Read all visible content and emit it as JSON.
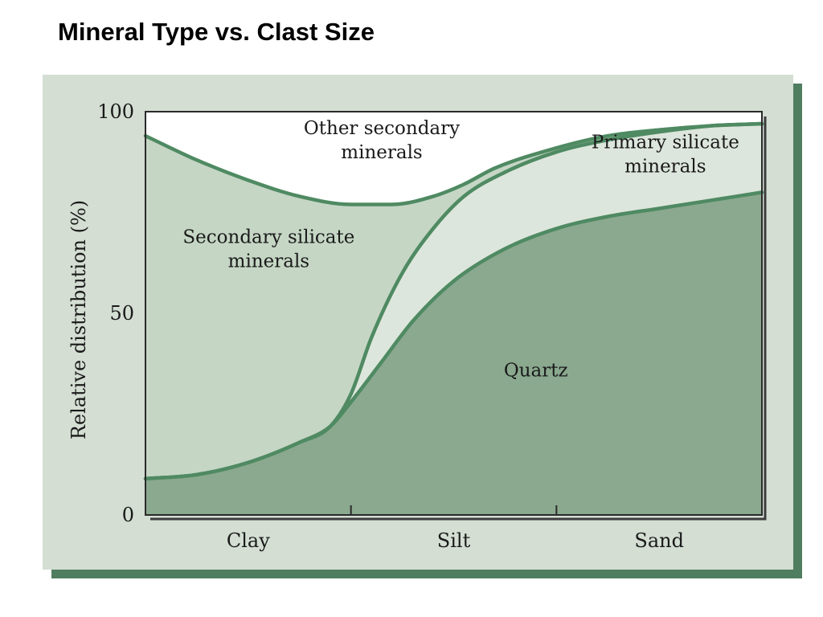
{
  "title": "Mineral Type vs. Clast Size",
  "colors": {
    "panel_bg": "#d4ded3",
    "panel_shadow": "#4f7d5f",
    "quartz_fill": "#8aa98f",
    "primary_fill": "#dde6dc",
    "secondary_fill": "#c5d6c5",
    "other_fill": "#ffffff",
    "curve": "#4f8a62",
    "axis": "#2a2a2a"
  },
  "chart_data": {
    "type": "area",
    "stacked": true,
    "ylabel": "Relative distribution (%)",
    "xlabel": "",
    "ylim": [
      0,
      100
    ],
    "xlim": [
      0,
      3
    ],
    "y_ticks": [
      {
        "value": 0,
        "label": "0"
      },
      {
        "value": 50,
        "label": "50"
      },
      {
        "value": 100,
        "label": "100"
      }
    ],
    "x_tick_marks": [
      1,
      2
    ],
    "categories": [
      {
        "label": "Clay",
        "x": 0.5
      },
      {
        "label": "Silt",
        "x": 1.5
      },
      {
        "label": "Sand",
        "x": 2.5
      }
    ],
    "boundaries": [
      {
        "name": "quartz_top",
        "x": [
          0,
          0.25,
          0.5,
          0.75,
          0.9,
          1.0,
          1.15,
          1.3,
          1.5,
          1.75,
          2.0,
          2.25,
          2.5,
          2.75,
          3.0
        ],
        "y": [
          9,
          10,
          13,
          18,
          22,
          28,
          38,
          48,
          58,
          66,
          71,
          74,
          76,
          78,
          80
        ]
      },
      {
        "name": "primary_silicate_top",
        "x": [
          0,
          0.25,
          0.5,
          0.75,
          0.9,
          1.0,
          1.1,
          1.25,
          1.4,
          1.55,
          1.75,
          2.0,
          2.25,
          2.5,
          2.75,
          3.0
        ],
        "y": [
          9,
          10,
          13,
          18,
          22,
          30,
          44,
          60,
          71,
          79,
          85,
          90,
          93,
          95,
          96.5,
          97
        ]
      },
      {
        "name": "secondary_silicate_top",
        "x": [
          0,
          0.25,
          0.5,
          0.75,
          1.0,
          1.2,
          1.4,
          1.55,
          1.7,
          2.0,
          2.25,
          2.5,
          2.75,
          3.0
        ],
        "y": [
          94,
          88,
          83,
          79,
          77,
          77,
          79,
          82,
          86,
          91,
          94,
          95.5,
          96.5,
          97
        ]
      }
    ],
    "regions": [
      {
        "name": "Quartz",
        "text": "Quartz",
        "at": [
          1.9,
          36
        ]
      },
      {
        "name": "Primary silicate minerals",
        "text": [
          "Primary silicate",
          "minerals"
        ],
        "at": [
          2.53,
          89.5
        ]
      },
      {
        "name": "Secondary silicate minerals",
        "text": [
          "Secondary silicate",
          "minerals"
        ],
        "at": [
          0.6,
          66
        ]
      },
      {
        "name": "Other secondary minerals",
        "text": [
          "Other secondary",
          "minerals"
        ],
        "at": [
          1.15,
          93
        ]
      }
    ]
  }
}
